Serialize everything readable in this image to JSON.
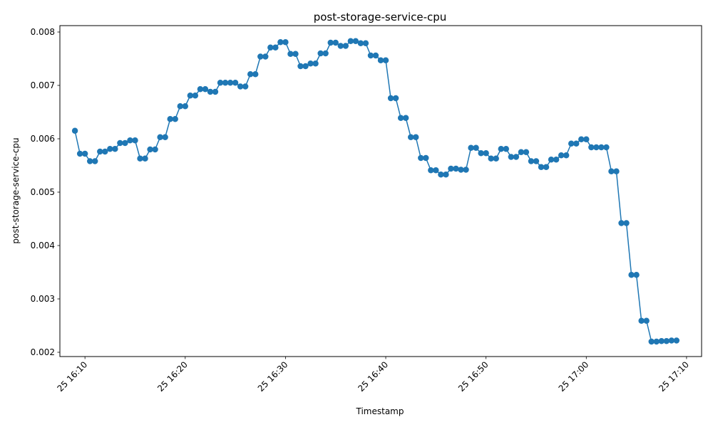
{
  "chart_data": {
    "type": "line",
    "title": "post-storage-service-cpu",
    "xlabel": "Timestamp",
    "ylabel": "post-storage-service-cpu",
    "x_type": "time",
    "x_start": "2024-04-25 16:09:00",
    "x_interval_seconds": 30,
    "xlim": [
      "2024-04-25 16:07:30",
      "2024-04-25 17:11:30"
    ],
    "ylim": [
      0.00192,
      0.00812
    ],
    "x_ticks": [
      {
        "value": "2024-04-25 16:10:00",
        "label": "25 16:10"
      },
      {
        "value": "2024-04-25 16:20:00",
        "label": "25 16:20"
      },
      {
        "value": "2024-04-25 16:30:00",
        "label": "25 16:30"
      },
      {
        "value": "2024-04-25 16:40:00",
        "label": "25 16:40"
      },
      {
        "value": "2024-04-25 16:50:00",
        "label": "25 16:50"
      },
      {
        "value": "2024-04-25 17:00:00",
        "label": "25 17:00"
      },
      {
        "value": "2024-04-25 17:10:00",
        "label": "25 17:10"
      }
    ],
    "y_ticks": [
      {
        "value": 0.002,
        "label": "0.002"
      },
      {
        "value": 0.003,
        "label": "0.003"
      },
      {
        "value": 0.004,
        "label": "0.004"
      },
      {
        "value": 0.005,
        "label": "0.005"
      },
      {
        "value": 0.006,
        "label": "0.006"
      },
      {
        "value": 0.007,
        "label": "0.007"
      },
      {
        "value": 0.008,
        "label": "0.008"
      }
    ],
    "grid": false,
    "legend": "none",
    "series": [
      {
        "color": "#1f77b4",
        "marker": "circle",
        "values": [
          0.00615,
          0.00572,
          0.00572,
          0.00558,
          0.00558,
          0.00576,
          0.00576,
          0.00581,
          0.00581,
          0.00592,
          0.00592,
          0.00597,
          0.00597,
          0.00563,
          0.00563,
          0.0058,
          0.0058,
          0.00603,
          0.00603,
          0.00637,
          0.00637,
          0.00661,
          0.00661,
          0.00681,
          0.00681,
          0.00693,
          0.00693,
          0.00688,
          0.00688,
          0.00705,
          0.00705,
          0.00705,
          0.00705,
          0.00698,
          0.00698,
          0.00721,
          0.00721,
          0.00754,
          0.00754,
          0.00771,
          0.00771,
          0.00781,
          0.00781,
          0.00759,
          0.00759,
          0.00736,
          0.00736,
          0.00741,
          0.00741,
          0.0076,
          0.0076,
          0.0078,
          0.0078,
          0.00774,
          0.00774,
          0.00783,
          0.00783,
          0.00779,
          0.00779,
          0.00756,
          0.00756,
          0.00747,
          0.00747,
          0.00676,
          0.00676,
          0.00639,
          0.00639,
          0.00603,
          0.00603,
          0.00564,
          0.00564,
          0.00541,
          0.00541,
          0.00533,
          0.00533,
          0.00544,
          0.00544,
          0.00542,
          0.00542,
          0.00583,
          0.00583,
          0.00573,
          0.00573,
          0.00563,
          0.00563,
          0.00581,
          0.00581,
          0.00566,
          0.00566,
          0.00575,
          0.00575,
          0.00558,
          0.00558,
          0.00547,
          0.00547,
          0.00561,
          0.00561,
          0.00569,
          0.00569,
          0.00591,
          0.00591,
          0.00599,
          0.00599,
          0.00584,
          0.00584,
          0.00584,
          0.00584,
          0.00539,
          0.00539,
          0.00442,
          0.00442,
          0.00345,
          0.00345,
          0.00259,
          0.00259,
          0.0022,
          0.0022,
          0.00221,
          0.00221,
          0.00222,
          0.00222
        ]
      }
    ]
  }
}
